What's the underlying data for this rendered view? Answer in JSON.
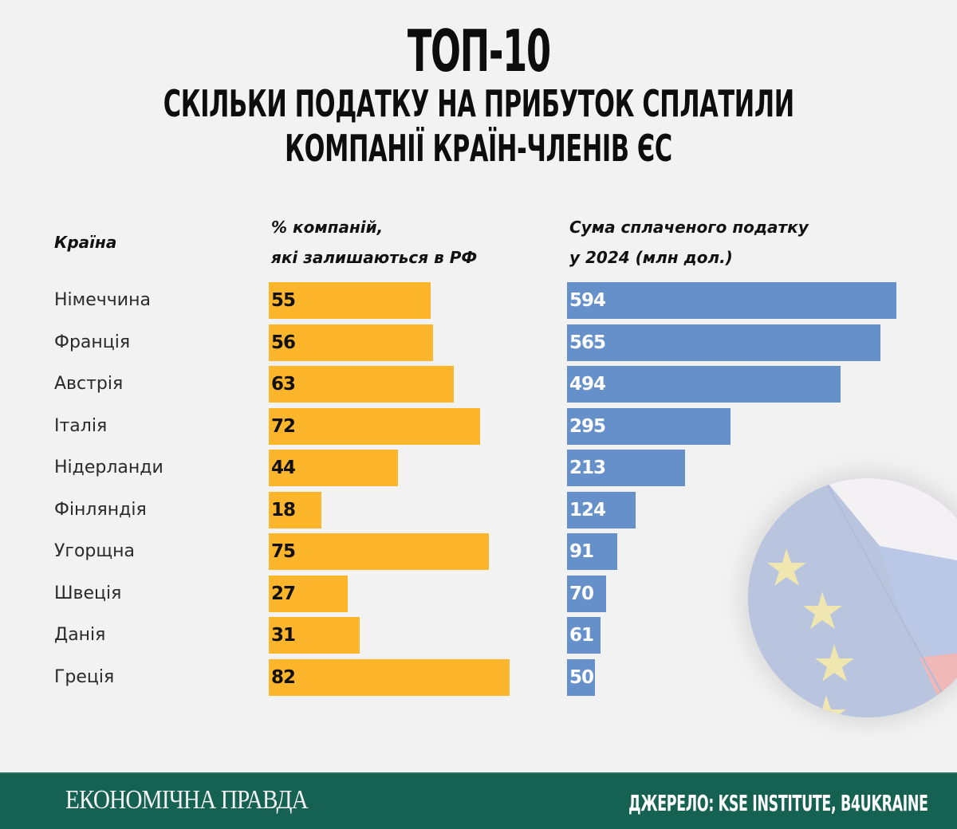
{
  "title": {
    "top": "ТОП-10",
    "line1": "СКІЛЬКИ ПОДАТКУ НА ПРИБУТОК СПЛАТИЛИ",
    "line2": "КОМПАНІЇ КРАЇН-ЧЛЕНІВ ЄС"
  },
  "headers": {
    "country": "Країна",
    "pct_line1": "% компаній,",
    "pct_line2": "які залишаються в РФ",
    "sum_line1": "Сума сплаченого податку",
    "sum_line2": "у 2024 (млн дол.)"
  },
  "colors": {
    "pct_bar": "#fdb52b",
    "sum_bar": "#6590c9",
    "footer_bg": "#156152",
    "background": "#f2f2f2"
  },
  "decor": {
    "image": "eu-russia-flags-circle"
  },
  "footer": {
    "logo": "ЕКОНОМІЧНА ПРАВДА",
    "source": "ДЖЕРЕЛО: KSE INSTITUTE, B4UKRAINE"
  },
  "chart_data": [
    {
      "type": "bar",
      "orientation": "horizontal",
      "title": "% компаній, які залишаються в РФ",
      "xlabel": "",
      "ylabel": "Країна",
      "categories": [
        "Німеччина",
        "Франція",
        "Австрія",
        "Італія",
        "Нідерланди",
        "Фінляндія",
        "Угорщна",
        "Швеція",
        "Данія",
        "Греція"
      ],
      "values": [
        55,
        56,
        63,
        72,
        44,
        18,
        75,
        27,
        31,
        82
      ],
      "xlim": [
        0,
        82
      ],
      "grid": false,
      "data_labels": true
    },
    {
      "type": "bar",
      "orientation": "horizontal",
      "title": "Сума сплаченого податку у 2024 (млн дол.)",
      "xlabel": "",
      "ylabel": "Країна",
      "categories": [
        "Німеччина",
        "Франція",
        "Австрія",
        "Італія",
        "Нідерланди",
        "Фінляндія",
        "Угорщна",
        "Швеція",
        "Данія",
        "Греція"
      ],
      "values": [
        594,
        565,
        494,
        295,
        213,
        124,
        91,
        70,
        61,
        50
      ],
      "xlim": [
        0,
        594
      ],
      "grid": false,
      "data_labels": true
    }
  ]
}
